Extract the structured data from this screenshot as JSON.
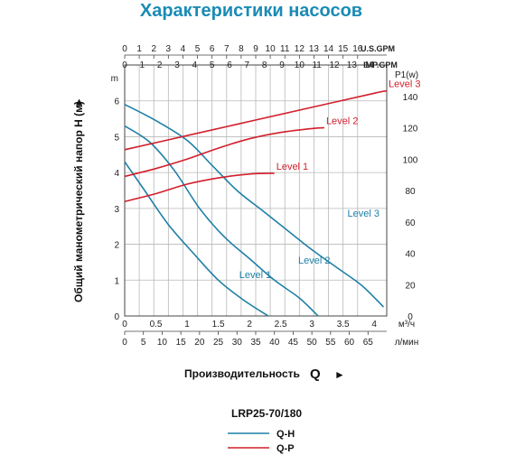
{
  "chart_data": {
    "type": "line",
    "title": "Характеристики насосов",
    "model": "LRP25-70/180",
    "ylabel_left": "Общий манометрический напор H (м)",
    "ylabel_left_arrow": "►",
    "xlabel": "Производительность",
    "xlabel_symbol": "Q",
    "xlabel_arrow": "►",
    "colors": {
      "title": "#1a8bb5",
      "qh": "#1f80a6",
      "qp": "#d11f2b",
      "grid": "#b8b8b8"
    },
    "axes": {
      "usgpm": {
        "ticks": [
          "0",
          "1",
          "2",
          "3",
          "4",
          "5",
          "6",
          "7",
          "8",
          "9",
          "10",
          "11",
          "12",
          "13",
          "14",
          "15",
          "16"
        ],
        "unit": "U.S.GPM",
        "range": [
          0,
          18
        ]
      },
      "impgpm": {
        "ticks": [
          "0",
          "1",
          "2",
          "3",
          "4",
          "5",
          "6",
          "7",
          "8",
          "9",
          "10",
          "11",
          "12",
          "13",
          "14"
        ],
        "unit": "IMP.GPM",
        "range": [
          0,
          15
        ]
      },
      "head": {
        "ticks": [
          "0",
          "1",
          "2",
          "3",
          "4",
          "5",
          "6"
        ],
        "unit": "m",
        "range": [
          0,
          7
        ]
      },
      "power": {
        "ticks": [
          "0",
          "20",
          "40",
          "60",
          "80",
          "100",
          "120",
          "140"
        ],
        "unit": "P1(w)",
        "range": [
          0,
          160
        ]
      },
      "m3h": {
        "ticks": [
          "0",
          "0.5",
          "1",
          "1.5",
          "2",
          "2.5",
          "3",
          "3.5",
          "4"
        ],
        "unit": "м³/ч",
        "range": [
          0,
          4.2
        ]
      },
      "lmin": {
        "ticks": [
          "0",
          "5",
          "10",
          "15",
          "20",
          "25",
          "30",
          "35",
          "40",
          "45",
          "50",
          "55",
          "60",
          "65"
        ],
        "unit": "л/мин",
        "range": [
          0,
          70
        ]
      }
    },
    "qh_series": [
      {
        "name": "Level 1",
        "points": [
          [
            0,
            4.3
          ],
          [
            0.3,
            3.55
          ],
          [
            0.7,
            2.55
          ],
          [
            1.1,
            1.75
          ],
          [
            1.5,
            1.0
          ],
          [
            1.9,
            0.45
          ],
          [
            2.3,
            0.0
          ]
        ]
      },
      {
        "name": "Level 2",
        "points": [
          [
            0,
            5.3
          ],
          [
            0.4,
            4.85
          ],
          [
            0.8,
            4.05
          ],
          [
            1.2,
            3.0
          ],
          [
            1.6,
            2.2
          ],
          [
            2.0,
            1.6
          ],
          [
            2.4,
            1.0
          ],
          [
            2.8,
            0.5
          ],
          [
            3.1,
            0.0
          ]
        ]
      },
      {
        "name": "Level 3",
        "points": [
          [
            0,
            5.9
          ],
          [
            0.5,
            5.45
          ],
          [
            1.0,
            4.9
          ],
          [
            1.4,
            4.2
          ],
          [
            1.8,
            3.5
          ],
          [
            2.2,
            2.95
          ],
          [
            2.6,
            2.4
          ],
          [
            3.0,
            1.85
          ],
          [
            3.4,
            1.35
          ],
          [
            3.8,
            0.85
          ],
          [
            4.15,
            0.25
          ]
        ]
      }
    ],
    "qp_series": [
      {
        "name": "Level 1",
        "points": [
          [
            0,
            73
          ],
          [
            0.5,
            78
          ],
          [
            1.0,
            84
          ],
          [
            1.5,
            88
          ],
          [
            2.0,
            90.5
          ],
          [
            2.4,
            91
          ]
        ]
      },
      {
        "name": "Level 2",
        "points": [
          [
            0,
            89
          ],
          [
            0.5,
            94
          ],
          [
            1.0,
            100
          ],
          [
            1.5,
            107
          ],
          [
            2.0,
            113
          ],
          [
            2.5,
            117
          ],
          [
            3.0,
            119.5
          ],
          [
            3.2,
            120
          ]
        ]
      },
      {
        "name": "Level 3",
        "points": [
          [
            0,
            106
          ],
          [
            1.0,
            115
          ],
          [
            2.0,
            124
          ],
          [
            3.0,
            133
          ],
          [
            4.0,
            142
          ],
          [
            4.2,
            143.5
          ]
        ]
      }
    ],
    "legend": {
      "qh_label": "Q-H",
      "qp_label": "Q-P"
    }
  }
}
